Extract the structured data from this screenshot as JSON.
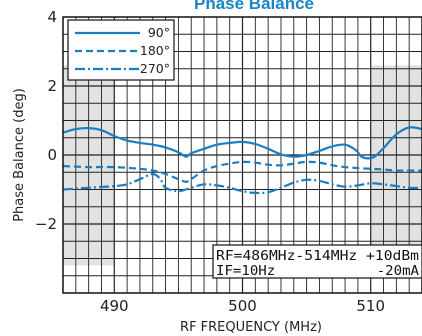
{
  "chart_data": {
    "type": "line",
    "title": "Phase Balance",
    "xlabel": "RF FREQUENCY (MHz)",
    "ylabel": "Phase Balance (deg)",
    "xlim": [
      486,
      514
    ],
    "ylim": [
      -4,
      4
    ],
    "x_ticks": [
      490,
      500,
      510
    ],
    "y_ticks": [
      4,
      2,
      0,
      -2
    ],
    "x_tick_labels": [
      "490",
      "500",
      "510"
    ],
    "y_tick_labels": [
      "4",
      "2",
      "0",
      "−2"
    ],
    "shaded_x_ranges": [
      [
        486,
        490
      ],
      [
        510,
        514
      ]
    ],
    "shaded_y_range": [
      -3.2,
      2.6
    ],
    "grid": true,
    "legend_position": "top-left",
    "series": [
      {
        "name": "90°",
        "style": "solid",
        "color": "#1a7fc0",
        "points": [
          [
            486,
            0.65
          ],
          [
            487,
            0.75
          ],
          [
            488,
            0.78
          ],
          [
            489,
            0.72
          ],
          [
            490,
            0.55
          ],
          [
            491,
            0.42
          ],
          [
            492,
            0.35
          ],
          [
            493,
            0.3
          ],
          [
            494,
            0.22
          ],
          [
            495,
            0.08
          ],
          [
            495.6,
            -0.05
          ],
          [
            496,
            0.05
          ],
          [
            497,
            0.18
          ],
          [
            498,
            0.3
          ],
          [
            499,
            0.35
          ],
          [
            500,
            0.38
          ],
          [
            501,
            0.32
          ],
          [
            502,
            0.18
          ],
          [
            503,
            0.02
          ],
          [
            504,
            -0.05
          ],
          [
            505,
            0.0
          ],
          [
            506,
            0.12
          ],
          [
            507,
            0.25
          ],
          [
            508,
            0.3
          ],
          [
            508.8,
            0.15
          ],
          [
            509.3,
            -0.05
          ],
          [
            509.8,
            -0.1
          ],
          [
            510.3,
            -0.05
          ],
          [
            511,
            0.2
          ],
          [
            512,
            0.6
          ],
          [
            513,
            0.8
          ],
          [
            514,
            0.75
          ]
        ]
      },
      {
        "name": "180°",
        "style": "dashed",
        "color": "#1a7fc0",
        "points": [
          [
            486,
            -0.32
          ],
          [
            488,
            -0.35
          ],
          [
            490,
            -0.35
          ],
          [
            492,
            -0.4
          ],
          [
            493,
            -0.45
          ],
          [
            494,
            -0.55
          ],
          [
            495,
            -0.7
          ],
          [
            495.6,
            -0.78
          ],
          [
            496,
            -0.7
          ],
          [
            497,
            -0.45
          ],
          [
            498,
            -0.32
          ],
          [
            499,
            -0.25
          ],
          [
            500,
            -0.2
          ],
          [
            501,
            -0.22
          ],
          [
            502,
            -0.28
          ],
          [
            503,
            -0.3
          ],
          [
            504,
            -0.25
          ],
          [
            505,
            -0.2
          ],
          [
            506,
            -0.22
          ],
          [
            507,
            -0.3
          ],
          [
            508,
            -0.35
          ],
          [
            509,
            -0.38
          ],
          [
            510,
            -0.4
          ],
          [
            511,
            -0.42
          ],
          [
            512,
            -0.45
          ],
          [
            513,
            -0.45
          ],
          [
            514,
            -0.45
          ]
        ]
      },
      {
        "name": "270°",
        "style": "dashdot",
        "color": "#1a7fc0",
        "points": [
          [
            486,
            -1.0
          ],
          [
            488,
            -0.95
          ],
          [
            490,
            -0.9
          ],
          [
            491,
            -0.85
          ],
          [
            492,
            -0.7
          ],
          [
            493,
            -0.55
          ],
          [
            493.6,
            -0.7
          ],
          [
            494,
            -0.95
          ],
          [
            495,
            -1.05
          ],
          [
            496,
            -0.95
          ],
          [
            497,
            -0.85
          ],
          [
            498,
            -0.88
          ],
          [
            499,
            -0.95
          ],
          [
            500,
            -1.05
          ],
          [
            501,
            -1.1
          ],
          [
            502,
            -1.08
          ],
          [
            503,
            -0.95
          ],
          [
            504,
            -0.8
          ],
          [
            505,
            -0.72
          ],
          [
            506,
            -0.75
          ],
          [
            507,
            -0.85
          ],
          [
            508,
            -0.92
          ],
          [
            509,
            -0.88
          ],
          [
            510,
            -0.82
          ],
          [
            511,
            -0.85
          ],
          [
            512,
            -0.9
          ],
          [
            513,
            -0.95
          ],
          [
            514,
            -0.95
          ]
        ]
      }
    ],
    "annotation_lines": [
      "RF=486MHz-514MHz +10dBm",
      "IF=10Hz            -20mA"
    ]
  }
}
